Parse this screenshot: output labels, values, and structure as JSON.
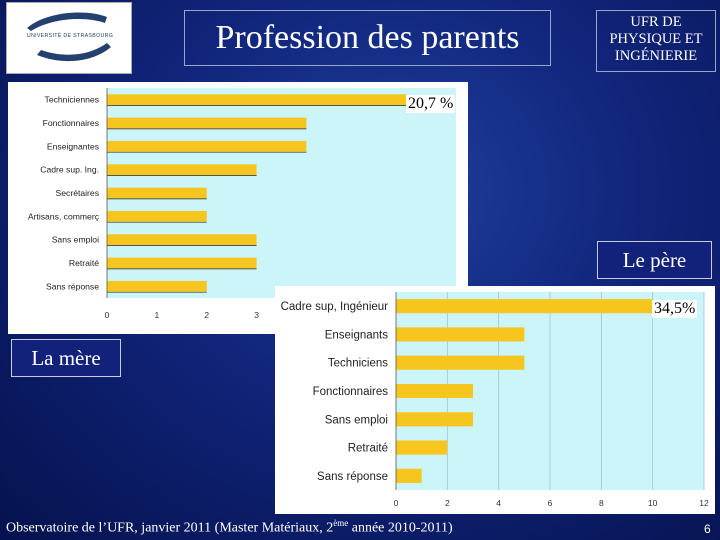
{
  "logo": {
    "text": "UNIVERSITÉ DE STRASBOURG"
  },
  "header": {
    "title": "Profession des parents",
    "ufr_lines": [
      "UFR DE",
      "PHYSIQUE ET",
      "INGÉNIERIE"
    ]
  },
  "colors": {
    "bar": "#f6c61f",
    "plot_bg": "#ccf5fa",
    "logo_blue": "#24406e"
  },
  "labels": {
    "mere_tag": "La mère",
    "pere_tag": "Le père",
    "mere_pct": "20,7 %",
    "pere_pct": "34,5%"
  },
  "chart_data": [
    {
      "type": "bar",
      "orientation": "horizontal",
      "categories": [
        "Techniciennes",
        "Fonctionnaires",
        "Enseignantes",
        "Cadre sup. Ing.",
        "Secrétaires",
        "Artisans, commerç",
        "Sans emploi",
        "Retraité",
        "Sans réponse"
      ],
      "values": [
        6,
        4,
        4,
        3,
        2,
        2,
        3,
        3,
        2
      ],
      "xticks": [
        "0",
        "1",
        "2",
        "3"
      ],
      "xlim": [
        0,
        7
      ],
      "grid": false,
      "title": "",
      "xlabel": "",
      "ylabel": ""
    },
    {
      "type": "bar",
      "orientation": "horizontal",
      "categories": [
        "Cadre sup, Ingénieur",
        "Enseignants",
        "Techniciens",
        "Fonctionnaires",
        "Sans emploi",
        "Retraité",
        "Sans réponse"
      ],
      "values": [
        10,
        5,
        5,
        3,
        3,
        2,
        1
      ],
      "xticks": [
        "0",
        "2",
        "4",
        "6",
        "8",
        "10",
        "12"
      ],
      "xlim": [
        0,
        12
      ],
      "grid": true,
      "title": "",
      "xlabel": "",
      "ylabel": ""
    }
  ],
  "footer": {
    "text_before": "Observatoire de l’UFR, janvier 2011 (Master Matériaux, 2",
    "sup": "ème",
    "text_after": " année 2010-2011)",
    "page_number": "6"
  }
}
